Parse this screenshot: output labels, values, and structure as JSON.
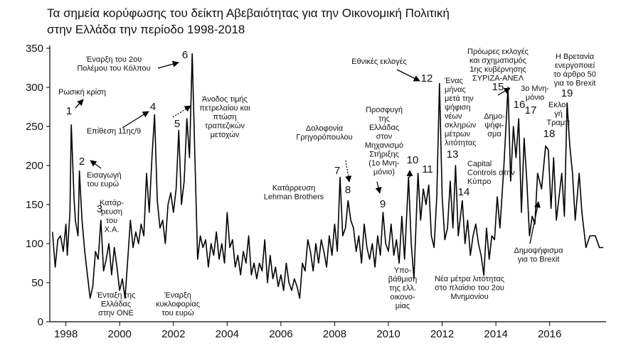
{
  "chart_data": {
    "type": "line",
    "title": [
      "Τα σημεία κορύφωσης του δείκτη Αβεβαιότητας για την Οικονομική Πολιτική",
      "στην Ελλάδα την περίοδο 1998-2018"
    ],
    "x": [
      1997.5,
      1997.6,
      1997.7,
      1997.8,
      1997.9,
      1998.0,
      1998.05,
      1998.15,
      1998.2,
      1998.3,
      1998.35,
      1998.45,
      1998.5,
      1998.6,
      1998.7,
      1998.8,
      1998.9,
      1999.0,
      1999.1,
      1999.2,
      1999.3,
      1999.4,
      1999.5,
      1999.6,
      1999.7,
      1999.8,
      1999.9,
      2000.0,
      2000.1,
      2000.2,
      2000.3,
      2000.4,
      2000.5,
      2000.6,
      2000.7,
      2000.8,
      2000.9,
      2001.0,
      2001.1,
      2001.2,
      2001.3,
      2001.4,
      2001.5,
      2001.6,
      2001.7,
      2001.8,
      2001.9,
      2002.0,
      2002.1,
      2002.2,
      2002.3,
      2002.4,
      2002.5,
      2002.6,
      2002.7,
      2002.8,
      2002.9,
      2003.0,
      2003.1,
      2003.2,
      2003.3,
      2003.4,
      2003.5,
      2003.6,
      2003.7,
      2003.8,
      2003.9,
      2004.0,
      2004.1,
      2004.2,
      2004.3,
      2004.4,
      2004.5,
      2004.6,
      2004.7,
      2004.8,
      2004.9,
      2005.0,
      2005.1,
      2005.2,
      2005.3,
      2005.4,
      2005.5,
      2005.6,
      2005.7,
      2005.8,
      2005.9,
      2006.0,
      2006.1,
      2006.2,
      2006.3,
      2006.4,
      2006.5,
      2006.6,
      2006.7,
      2006.8,
      2006.9,
      2007.0,
      2007.1,
      2007.2,
      2007.3,
      2007.4,
      2007.5,
      2007.6,
      2007.7,
      2007.8,
      2007.9,
      2008.0,
      2008.1,
      2008.2,
      2008.3,
      2008.4,
      2008.5,
      2008.6,
      2008.7,
      2008.8,
      2008.9,
      2009.0,
      2009.1,
      2009.2,
      2009.3,
      2009.4,
      2009.5,
      2009.6,
      2009.7,
      2009.8,
      2009.9,
      2010.0,
      2010.1,
      2010.2,
      2010.3,
      2010.4,
      2010.5,
      2010.6,
      2010.75,
      2010.85,
      2010.95,
      2011.1,
      2011.2,
      2011.3,
      2011.4,
      2011.5,
      2011.6,
      2011.7,
      2011.8,
      2011.9,
      2012.0,
      2012.1,
      2012.2,
      2012.3,
      2012.4,
      2012.5,
      2012.6,
      2012.75,
      2012.85,
      2012.95,
      2013.05,
      2013.15,
      2013.25,
      2013.35,
      2013.45,
      2013.55,
      2013.65,
      2013.75,
      2013.85,
      2013.95,
      2014.05,
      2014.15,
      2014.3,
      2014.45,
      2014.55,
      2014.65,
      2014.75,
      2014.85,
      2014.95,
      2015.05,
      2015.15,
      2015.25,
      2015.35,
      2015.45,
      2015.55,
      2015.7,
      2015.85,
      2015.95,
      2016.05,
      2016.15,
      2016.25,
      2016.35,
      2016.45,
      2016.55,
      2016.65,
      2016.75,
      2016.85,
      2016.95,
      2017.1,
      2017.2,
      2017.35,
      2017.5,
      2017.7,
      2017.85,
      2018.0
    ],
    "values": [
      115,
      70,
      105,
      110,
      90,
      125,
      85,
      140,
      252,
      160,
      130,
      110,
      193,
      130,
      90,
      60,
      30,
      45,
      90,
      80,
      130,
      65,
      80,
      100,
      60,
      95,
      70,
      40,
      55,
      30,
      80,
      130,
      95,
      115,
      100,
      125,
      110,
      190,
      140,
      210,
      265,
      155,
      120,
      130,
      100,
      150,
      165,
      140,
      170,
      245,
      150,
      180,
      260,
      210,
      343,
      210,
      80,
      110,
      95,
      105,
      70,
      100,
      85,
      115,
      80,
      100,
      75,
      140,
      95,
      105,
      70,
      85,
      60,
      90,
      75,
      110,
      60,
      75,
      55,
      75,
      65,
      105,
      50,
      85,
      55,
      70,
      45,
      60,
      40,
      75,
      50,
      40,
      55,
      45,
      30,
      75,
      65,
      105,
      90,
      65,
      100,
      75,
      105,
      90,
      70,
      110,
      85,
      125,
      90,
      185,
      110,
      120,
      155,
      130,
      120,
      90,
      110,
      75,
      125,
      95,
      80,
      100,
      70,
      110,
      85,
      140,
      100,
      90,
      125,
      85,
      105,
      75,
      135,
      80,
      185,
      100,
      55,
      190,
      130,
      170,
      150,
      175,
      110,
      95,
      160,
      305,
      160,
      105,
      120,
      180,
      120,
      200,
      110,
      155,
      100,
      130,
      85,
      110,
      125,
      100,
      85,
      60,
      120,
      80,
      110,
      105,
      160,
      120,
      200,
      300,
      180,
      250,
      210,
      260,
      140,
      235,
      180,
      110,
      135,
      125,
      190,
      170,
      225,
      220,
      145,
      210,
      130,
      160,
      190,
      135,
      280,
      225,
      190,
      130,
      190,
      140,
      95,
      110,
      110,
      95,
      95
    ],
    "color": "#000000",
    "xlim": [
      1997.4,
      2018.1
    ],
    "xticks": [
      1998,
      2000,
      2002,
      2004,
      2006,
      2008,
      2010,
      2012,
      2014,
      2016
    ],
    "ylim": [
      0,
      350
    ],
    "yticks": [
      0,
      50,
      100,
      150,
      200,
      250,
      300,
      350
    ],
    "annotations": [
      [
        "1"
      ],
      [
        "Ρωσική κρίση"
      ],
      [
        "2"
      ],
      [
        "Εισαγωγή",
        "του ευρώ"
      ],
      [
        "3"
      ],
      [
        "Κατάρ-",
        "ρευση",
        "του",
        "Χ.Α."
      ],
      [
        "Ένταξη της",
        "Ελλάδας",
        "στην ΟΝΕ"
      ],
      [
        "4"
      ],
      [
        "Επίθεση 11ης/9"
      ],
      [
        "Έναρξη του 2ου",
        "Πολέμου του Κόλπου"
      ],
      [
        "6"
      ],
      [
        "5"
      ],
      [
        "Άνοδος τιμής",
        "πετρελαίου και",
        "πτώση",
        "τραπεζικών",
        "μετοχών"
      ],
      [
        "Έναρξη",
        "κυκλοφορίας",
        "του ευρώ"
      ],
      [
        "Δολοφονία",
        "Γρηγορόπουλου"
      ],
      [
        "7"
      ],
      [
        "8"
      ],
      [
        "Κατάρρευση",
        "Lehman Brothers"
      ],
      [
        "Εθνικές εκλογές"
      ],
      [
        "12"
      ],
      [
        "Προσφυγή",
        "της",
        "Ελλάδας",
        "στον",
        "Μηχανισμό",
        "Στήριξης",
        "(1ο Μνη-",
        "μόνιο)"
      ],
      [
        "9"
      ],
      [
        "10"
      ],
      [
        "11"
      ],
      [
        "Υπο-",
        "βάθμιση",
        "της ελλ.",
        "οικονο-",
        "μίας"
      ],
      [
        "Νέα μέτρα λιτότητας",
        "στο πλαίσιο του 2ου",
        "Μνημονίου"
      ],
      [
        "Ένας",
        "μήνας",
        "μετά την",
        "ψήφιση",
        "νέων",
        "σκληρών",
        "μέτρων",
        "λιτότητας"
      ],
      [
        "13"
      ],
      [
        "Capital",
        "Controls στην",
        "Κύπρο"
      ],
      [
        "14"
      ],
      [
        "Πρόωρες εκλογές",
        "και σχηματισμός",
        "1ης κυβέρνησης",
        "ΣΥΡΙΖΑ-ΑΝΕΛ"
      ],
      [
        "15"
      ],
      [
        "Δημο-",
        "ψήφι-",
        "σμα"
      ],
      [
        "16"
      ],
      [
        "3ο Μνη-",
        "μόνιο"
      ],
      [
        "17"
      ],
      [
        "Εκλο-",
        "γή",
        "Τραμπ"
      ],
      [
        "18"
      ],
      [
        "Η Βρετανία",
        "ενεργοποιεί",
        "το άρθρο 50",
        "για το Brexit"
      ],
      [
        "19"
      ],
      [
        "Δημοψήφισμα",
        "για το Brexit"
      ]
    ]
  }
}
